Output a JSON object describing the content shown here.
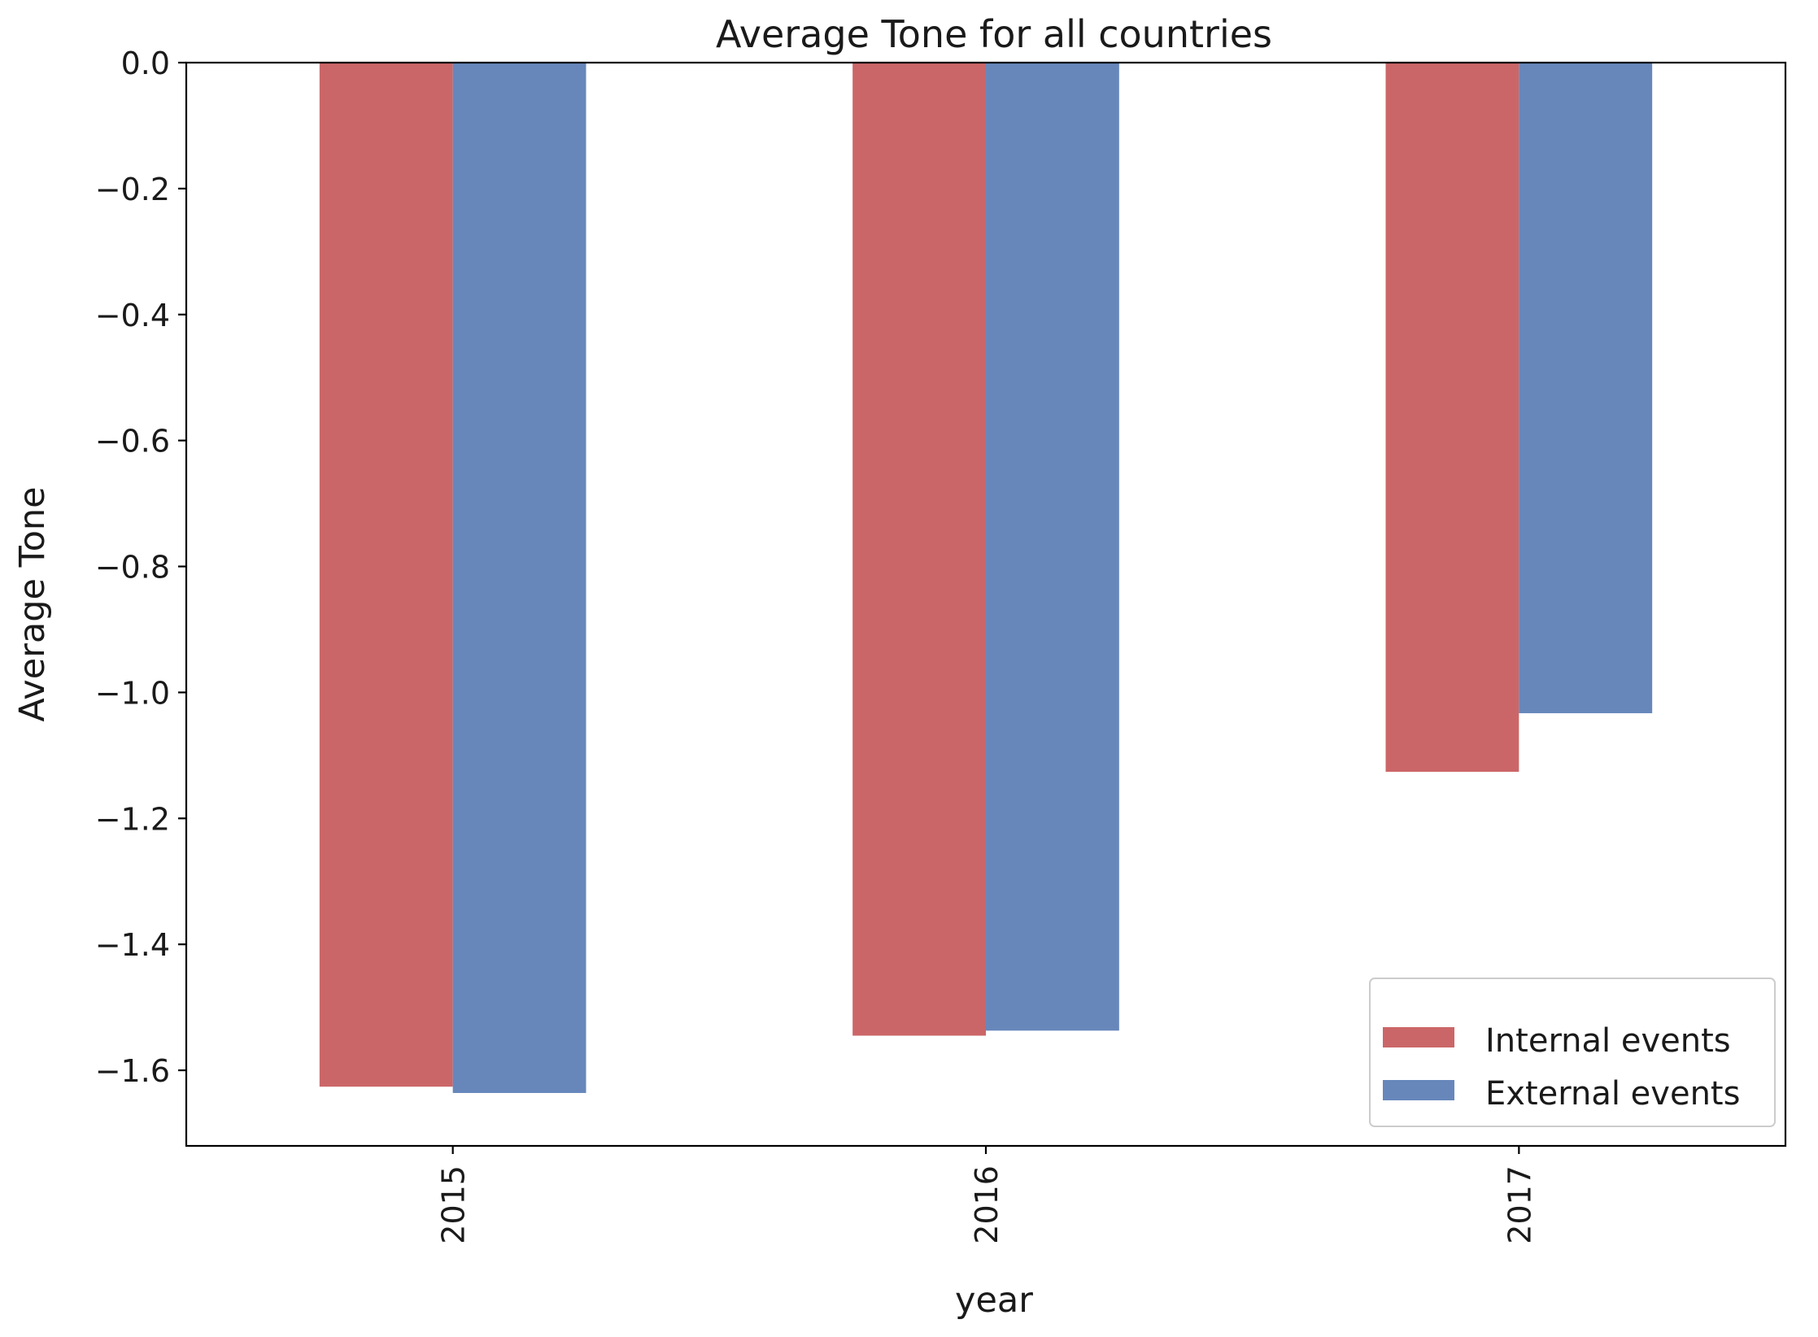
{
  "chart_data": {
    "type": "bar",
    "title": "Average Tone for all countries",
    "xlabel": "year",
    "ylabel": "Average Tone",
    "categories": [
      "2015",
      "2016",
      "2017"
    ],
    "series": [
      {
        "name": "Internal events",
        "color": "#cb6668",
        "values": [
          -1.626,
          -1.545,
          -1.126
        ]
      },
      {
        "name": "External events",
        "color": "#6787bb",
        "values": [
          -1.636,
          -1.537,
          -1.033
        ]
      }
    ],
    "ylim": [
      -1.72,
      0.0
    ],
    "yticks": [
      0.0,
      -0.2,
      -0.4,
      -0.6,
      -0.8,
      -1.0,
      -1.2,
      -1.4,
      -1.6
    ],
    "ytick_labels": [
      "0.0",
      "−0.2",
      "−0.4",
      "−0.6",
      "−0.8",
      "−1.0",
      "−1.2",
      "−1.4",
      "−1.6"
    ],
    "grid": false,
    "legend_position": "lower-right",
    "xtick_rotation": "vertical"
  }
}
